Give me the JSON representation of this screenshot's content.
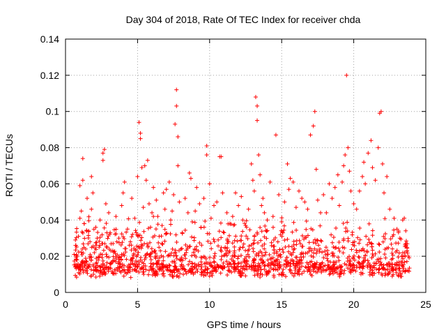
{
  "chart_data": {
    "type": "scatter",
    "title": "Day 304 of 2018, Rate Of TEC Index for receiver chda",
    "xlabel": "GPS time / hours",
    "ylabel": "ROTI / TECUs",
    "xlim": [
      0,
      25
    ],
    "ylim": [
      0,
      0.14
    ],
    "x_ticks": [
      0,
      5,
      10,
      15,
      20,
      25
    ],
    "x_tick_labels": [
      "0",
      "5",
      "10",
      "15",
      "20",
      "25"
    ],
    "y_ticks": [
      0,
      0.02,
      0.04,
      0.06,
      0.08,
      0.1,
      0.12,
      0.14
    ],
    "y_tick_labels": [
      "0",
      "0.02",
      "0.04",
      "0.06",
      "0.08",
      "0.1",
      "0.12",
      "0.14"
    ],
    "grid": true,
    "marker": "+",
    "color": "#ff0000",
    "series": [
      {
        "name": "ROTI",
        "points": [
          [
            0.6,
            0.021
          ],
          [
            0.7,
            0.026
          ],
          [
            0.8,
            0.018
          ],
          [
            0.9,
            0.031
          ],
          [
            1.0,
            0.041
          ],
          [
            1.0,
            0.059
          ],
          [
            1.1,
            0.045
          ],
          [
            1.2,
            0.074
          ],
          [
            1.2,
            0.062
          ],
          [
            1.3,
            0.038
          ],
          [
            1.4,
            0.024
          ],
          [
            1.5,
            0.052
          ],
          [
            1.6,
            0.034
          ],
          [
            1.7,
            0.028
          ],
          [
            1.8,
            0.064
          ],
          [
            1.8,
            0.046
          ],
          [
            1.9,
            0.055
          ],
          [
            2.0,
            0.022
          ],
          [
            2.1,
            0.036
          ],
          [
            2.2,
            0.03
          ],
          [
            2.4,
            0.04
          ],
          [
            2.6,
            0.077
          ],
          [
            2.6,
            0.073
          ],
          [
            2.7,
            0.079
          ],
          [
            2.8,
            0.049
          ],
          [
            2.9,
            0.025
          ],
          [
            3.0,
            0.044
          ],
          [
            3.1,
            0.033
          ],
          [
            3.3,
            0.027
          ],
          [
            3.5,
            0.042
          ],
          [
            3.7,
            0.03
          ],
          [
            3.9,
            0.048
          ],
          [
            4.0,
            0.055
          ],
          [
            4.1,
            0.061
          ],
          [
            4.3,
            0.035
          ],
          [
            4.5,
            0.028
          ],
          [
            4.6,
            0.052
          ],
          [
            4.8,
            0.041
          ],
          [
            4.9,
            0.033
          ],
          [
            5.0,
            0.064
          ],
          [
            5.1,
            0.094
          ],
          [
            5.2,
            0.088
          ],
          [
            5.2,
            0.085
          ],
          [
            5.3,
            0.069
          ],
          [
            5.4,
            0.047
          ],
          [
            5.5,
            0.07
          ],
          [
            5.6,
            0.062
          ],
          [
            5.7,
            0.073
          ],
          [
            5.8,
            0.049
          ],
          [
            5.9,
            0.036
          ],
          [
            6.0,
            0.044
          ],
          [
            6.1,
            0.058
          ],
          [
            6.3,
            0.051
          ],
          [
            6.4,
            0.042
          ],
          [
            6.5,
            0.031
          ],
          [
            6.7,
            0.037
          ],
          [
            6.8,
            0.055
          ],
          [
            6.9,
            0.046
          ],
          [
            7.0,
            0.057
          ],
          [
            7.2,
            0.061
          ],
          [
            7.3,
            0.04
          ],
          [
            7.4,
            0.045
          ],
          [
            7.5,
            0.054
          ],
          [
            7.6,
            0.093
          ],
          [
            7.7,
            0.112
          ],
          [
            7.7,
            0.103
          ],
          [
            7.8,
            0.086
          ],
          [
            7.8,
            0.07
          ],
          [
            7.9,
            0.05
          ],
          [
            8.1,
            0.033
          ],
          [
            8.3,
            0.052
          ],
          [
            8.5,
            0.044
          ],
          [
            8.6,
            0.066
          ],
          [
            8.7,
            0.063
          ],
          [
            8.8,
            0.039
          ],
          [
            9.0,
            0.045
          ],
          [
            9.1,
            0.058
          ],
          [
            9.3,
            0.049
          ],
          [
            9.4,
            0.036
          ],
          [
            9.6,
            0.052
          ],
          [
            9.8,
            0.081
          ],
          [
            9.8,
            0.076
          ],
          [
            10.0,
            0.06
          ],
          [
            10.1,
            0.041
          ],
          [
            10.3,
            0.048
          ],
          [
            10.5,
            0.05
          ],
          [
            10.7,
            0.075
          ],
          [
            10.8,
            0.075
          ],
          [
            10.9,
            0.055
          ],
          [
            11.0,
            0.033
          ],
          [
            11.2,
            0.044
          ],
          [
            11.4,
            0.038
          ],
          [
            11.6,
            0.042
          ],
          [
            11.8,
            0.055
          ],
          [
            12.0,
            0.048
          ],
          [
            12.2,
            0.053
          ],
          [
            12.3,
            0.04
          ],
          [
            12.5,
            0.037
          ],
          [
            12.7,
            0.046
          ],
          [
            12.9,
            0.071
          ],
          [
            13.0,
            0.062
          ],
          [
            13.1,
            0.056
          ],
          [
            13.2,
            0.108
          ],
          [
            13.3,
            0.103
          ],
          [
            13.3,
            0.095
          ],
          [
            13.4,
            0.076
          ],
          [
            13.5,
            0.065
          ],
          [
            13.6,
            0.048
          ],
          [
            13.7,
            0.052
          ],
          [
            13.8,
            0.044
          ],
          [
            14.0,
            0.04
          ],
          [
            14.2,
            0.061
          ],
          [
            14.4,
            0.042
          ],
          [
            14.6,
            0.087
          ],
          [
            14.8,
            0.054
          ],
          [
            15.0,
            0.039
          ],
          [
            15.2,
            0.05
          ],
          [
            15.4,
            0.071
          ],
          [
            15.5,
            0.057
          ],
          [
            15.6,
            0.063
          ],
          [
            15.8,
            0.061
          ],
          [
            16.0,
            0.047
          ],
          [
            16.2,
            0.056
          ],
          [
            16.4,
            0.052
          ],
          [
            16.6,
            0.05
          ],
          [
            16.8,
            0.046
          ],
          [
            17.0,
            0.087
          ],
          [
            17.2,
            0.092
          ],
          [
            17.3,
            0.1
          ],
          [
            17.4,
            0.068
          ],
          [
            17.5,
            0.051
          ],
          [
            17.7,
            0.044
          ],
          [
            17.9,
            0.054
          ],
          [
            18.1,
            0.044
          ],
          [
            18.3,
            0.06
          ],
          [
            18.5,
            0.052
          ],
          [
            18.7,
            0.058
          ],
          [
            18.9,
            0.065
          ],
          [
            19.0,
            0.048
          ],
          [
            19.2,
            0.061
          ],
          [
            19.3,
            0.07
          ],
          [
            19.4,
            0.076
          ],
          [
            19.5,
            0.12
          ],
          [
            19.6,
            0.08
          ],
          [
            19.7,
            0.067
          ],
          [
            19.8,
            0.056
          ],
          [
            20.0,
            0.049
          ],
          [
            20.2,
            0.046
          ],
          [
            20.4,
            0.056
          ],
          [
            20.6,
            0.064
          ],
          [
            20.7,
            0.072
          ],
          [
            20.8,
            0.06
          ],
          [
            21.0,
            0.077
          ],
          [
            21.2,
            0.084
          ],
          [
            21.3,
            0.069
          ],
          [
            21.5,
            0.062
          ],
          [
            21.7,
            0.08
          ],
          [
            21.8,
            0.099
          ],
          [
            21.9,
            0.1
          ],
          [
            22.0,
            0.071
          ],
          [
            22.1,
            0.055
          ],
          [
            22.3,
            0.064
          ],
          [
            22.5,
            0.046
          ],
          [
            22.8,
            0.041
          ],
          [
            23.0,
            0.035
          ],
          [
            23.2,
            0.03
          ],
          [
            23.4,
            0.04
          ],
          [
            23.6,
            0.027
          ],
          [
            23.7,
            0.023
          ],
          [
            23.8,
            0.02
          ]
        ]
      }
    ]
  }
}
